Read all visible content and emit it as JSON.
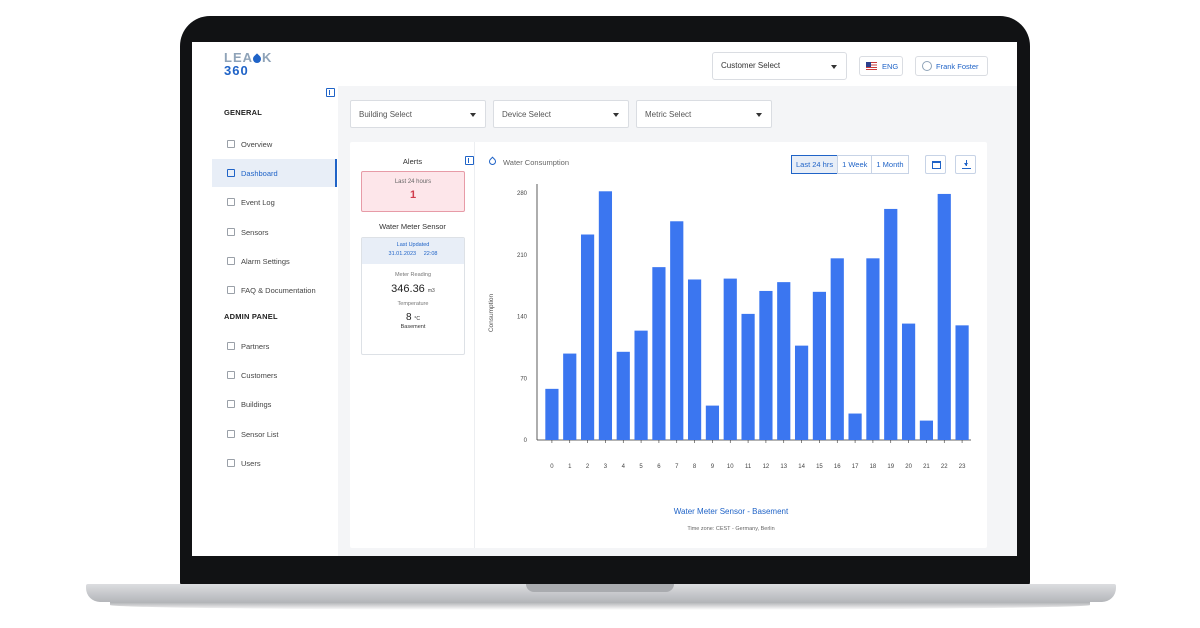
{
  "header": {
    "logo_top": "LEA",
    "logo_k": "K",
    "logo_bottom": "360",
    "customer_select": "Customer Select",
    "language": "ENG",
    "user": "Frank Foster"
  },
  "sidebar": {
    "general_title": "GENERAL",
    "general_items": [
      {
        "label": "Overview",
        "icon": "home-icon"
      },
      {
        "label": "Dashboard",
        "icon": "dashboard-icon"
      },
      {
        "label": "Event Log",
        "icon": "log-icon"
      },
      {
        "label": "Sensors",
        "icon": "sensor-icon"
      },
      {
        "label": "Alarm Settings",
        "icon": "alarm-icon"
      },
      {
        "label": "FAQ & Documentation",
        "icon": "help-icon"
      }
    ],
    "admin_title": "ADMIN PANEL",
    "admin_items": [
      {
        "label": "Partners",
        "icon": "partners-icon"
      },
      {
        "label": "Customers",
        "icon": "customers-icon"
      },
      {
        "label": "Buildings",
        "icon": "buildings-icon"
      },
      {
        "label": "Sensor List",
        "icon": "list-icon"
      },
      {
        "label": "Users",
        "icon": "users-icon"
      }
    ],
    "active_item": "Dashboard"
  },
  "filters": {
    "building": "Building Select",
    "device": "Device Select",
    "metric": "Metric Select"
  },
  "panel": {
    "alerts_title": "Alerts",
    "alerts_period": "Last 24 hours",
    "alerts_count": "1",
    "sensor_title": "Water Meter Sensor",
    "last_updated_label": "Last Updated",
    "last_updated_value": "31.01.2023     22:08",
    "meter_label": "Meter Reading",
    "meter_value": "346.36",
    "meter_unit": "m3",
    "temp_label": "Temperature",
    "temp_value": "8",
    "temp_unit": "°C",
    "location": "Basement"
  },
  "chart_header": {
    "title": "Water Consumption",
    "ranges": [
      "Last 24 hrs",
      "1 Week",
      "1 Month"
    ],
    "active_range": "Last 24 hrs"
  },
  "colors": {
    "accent": "#1f63c7",
    "bar": "#3b76f0",
    "alert_bg": "#fde6ea",
    "alert_text": "#d03b4c"
  },
  "chart_data": {
    "type": "bar",
    "categories": [
      "0",
      "1",
      "2",
      "3",
      "4",
      "5",
      "6",
      "7",
      "8",
      "9",
      "10",
      "11",
      "12",
      "13",
      "14",
      "15",
      "16",
      "17",
      "18",
      "19",
      "20",
      "21",
      "22",
      "23"
    ],
    "values": [
      58,
      98,
      233,
      282,
      100,
      124,
      196,
      248,
      182,
      39,
      183,
      143,
      169,
      179,
      107,
      168,
      206,
      30,
      206,
      262,
      132,
      22,
      279,
      130
    ],
    "ylabel": "Consumption",
    "yticks": [
      0,
      70,
      140,
      210,
      280
    ],
    "ylim": [
      0,
      288
    ],
    "caption": "Water Meter Sensor - Basement",
    "timezone": "Time zone: CEST - Germany, Berlin"
  }
}
